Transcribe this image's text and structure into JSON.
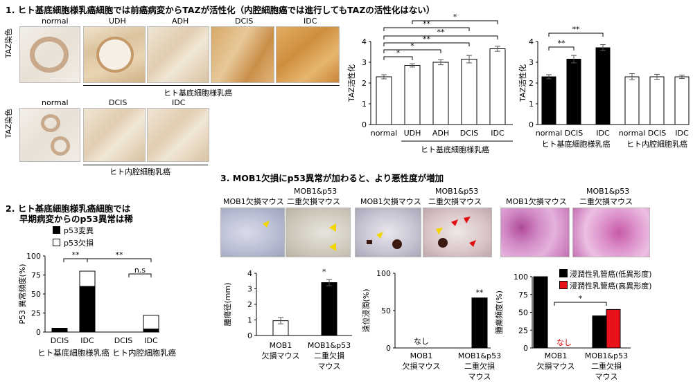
{
  "section1": {
    "title": "1. ヒト基底細胞様乳癌細胞では前癌病変からTAZが活性化（内腔細胞癌では進行してもTAZの活性化はない）",
    "taz_stain_label": "TAZ染色",
    "row1_images": [
      "normal",
      "UDH",
      "ADH",
      "DCIS",
      "IDC"
    ],
    "row1_group": "ヒト基底細胞様乳癌",
    "row2_images": [
      "normal",
      "DCIS",
      "IDC"
    ],
    "row2_group": "ヒト内腔細胞乳癌",
    "sig_labels": [
      "*",
      "**",
      "*",
      "*",
      "**",
      "**",
      "**",
      "**",
      "**"
    ]
  },
  "section2": {
    "title_line1": "2. ヒト基底細胞様乳癌細胞では",
    "title_line2": "早期病変からのp53異常は稀",
    "legend": [
      "p53変異",
      "p53欠損"
    ],
    "sig_labels": [
      "**",
      "**",
      "n.s"
    ]
  },
  "section3": {
    "title": "3. MOB1欠損にp53異常が加わると、より悪性度が増加",
    "photo_labels": [
      {
        "line1": "MOB1欠損マウス",
        "line2": ""
      },
      {
        "line1": "MOB1&p53",
        "line2": "二重欠損マウス"
      },
      {
        "line1": "MOB1欠損マウス",
        "line2": ""
      },
      {
        "line1": "MOB1&p53",
        "line2": "二重欠損マウス"
      },
      {
        "line1": "MOB1欠損マウス",
        "line2": ""
      },
      {
        "line1": "MOB1&p53",
        "line2": "二重欠損マウス"
      }
    ],
    "xcat": {
      "a1": "MOB1",
      "a2": "欠損マウス",
      "b1": "MOB1&p53",
      "b2": "二重欠損",
      "b3": "マウス"
    },
    "none_label": "なし",
    "sig_labels": [
      "*",
      "**",
      "*"
    ],
    "legend": [
      "浸潤性乳管癌(低異形度)",
      "浸潤性乳管癌(高異形度)"
    ]
  },
  "colors": {
    "black": "#000000",
    "red": "#e8121a",
    "white": "#ffffff",
    "none_red": "#e00000"
  },
  "chart_data": [
    {
      "id": "taz-basal",
      "type": "bar",
      "categories": [
        "normal",
        "UDH",
        "ADH",
        "DCIS",
        "IDC"
      ],
      "values": [
        2.3,
        2.85,
        3.0,
        3.15,
        3.65
      ],
      "errors": [
        0.1,
        0.08,
        0.12,
        0.18,
        0.12
      ],
      "bar_color": "#ffffff",
      "ylabel": "TAZ活性化",
      "ylim": [
        0,
        4
      ],
      "yticks": [
        0,
        1,
        2,
        3,
        4
      ],
      "group_label": "ヒト基底細胞様乳癌"
    },
    {
      "id": "taz-compare",
      "type": "bar",
      "categories": [
        "normal",
        "DCIS",
        "IDC",
        "normal",
        "DCIS",
        "IDC"
      ],
      "values": [
        2.3,
        3.15,
        3.7,
        2.3,
        2.3,
        2.3
      ],
      "errors": [
        0.1,
        0.18,
        0.15,
        0.15,
        0.12,
        0.08
      ],
      "bar_colors": [
        "#000000",
        "#000000",
        "#000000",
        "#ffffff",
        "#ffffff",
        "#ffffff"
      ],
      "ylabel": "TAZ活性化",
      "ylim": [
        0,
        4
      ],
      "yticks": [
        0,
        1,
        2,
        3,
        4
      ],
      "group_labels": [
        "ヒト基底細胞様乳癌",
        "ヒト内腔細胞乳癌"
      ]
    },
    {
      "id": "p53-freq",
      "type": "bar",
      "stacked": true,
      "categories": [
        "DCIS",
        "IDC",
        "DCIS",
        "IDC"
      ],
      "series": [
        {
          "name": "p53変異",
          "values": [
            5,
            60,
            0,
            4
          ],
          "color": "#000000"
        },
        {
          "name": "p53欠損",
          "values": [
            0,
            20,
            0,
            18
          ],
          "color": "#ffffff"
        }
      ],
      "ylabel": "P53 異常頻度(%)",
      "ylim": [
        0,
        100
      ],
      "yticks": [
        0,
        25,
        50,
        75,
        100
      ],
      "group_labels": [
        "ヒト基底細胞様乳癌",
        "ヒト内腔細胞乳癌"
      ]
    },
    {
      "id": "tumor-size",
      "type": "bar",
      "values": [
        0.95,
        3.4
      ],
      "errors": [
        0.2,
        0.2
      ],
      "bar_colors": [
        "#ffffff",
        "#000000"
      ],
      "ylabel": "腫瘍径(mm)",
      "ylim": [
        0,
        4
      ],
      "yticks": [
        0,
        1,
        2,
        3,
        4
      ]
    },
    {
      "id": "metastasis",
      "type": "bar",
      "values": [
        0,
        67
      ],
      "bar_colors": [
        "#ffffff",
        "#000000"
      ],
      "ylabel": "遠位浸潤(%)",
      "ylim": [
        0,
        100
      ],
      "yticks": [
        0,
        50,
        100
      ]
    },
    {
      "id": "tumor-freq",
      "type": "bar",
      "series": [
        {
          "name": "浸潤性乳管癌(低異形度)",
          "values": [
            100,
            45
          ],
          "color": "#000000"
        },
        {
          "name": "浸潤性乳管癌(高異形度)",
          "values": [
            0,
            54
          ],
          "color": "#e8121a"
        }
      ],
      "ylabel": "腫瘍頻度(%)",
      "ylim": [
        0,
        100
      ],
      "yticks": [
        0,
        25,
        50,
        75,
        100
      ]
    }
  ]
}
